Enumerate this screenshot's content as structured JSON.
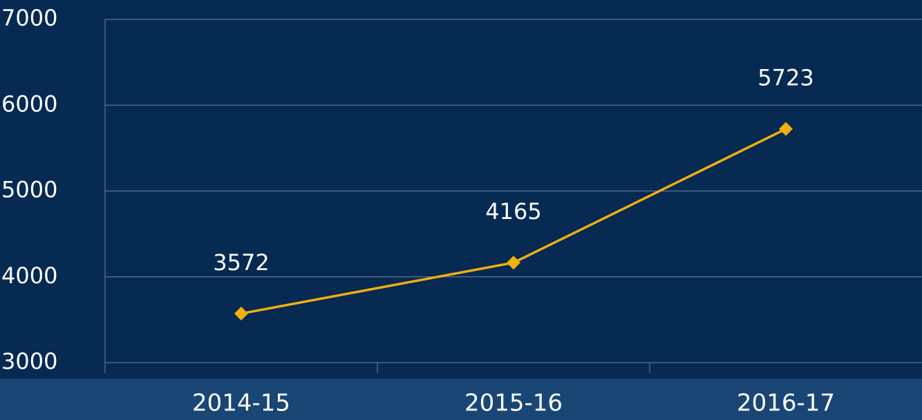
{
  "chart_data": {
    "type": "line",
    "categories": [
      "2014-15",
      "2015-16",
      "2016-17"
    ],
    "series": [
      {
        "name": null,
        "color": "#f0b00f",
        "values": [
          3572,
          4165,
          5723
        ]
      }
    ],
    "ylim": [
      3000,
      7000
    ],
    "yticks": [
      3000,
      4000,
      5000,
      6000,
      7000
    ],
    "grid": true
  }
}
